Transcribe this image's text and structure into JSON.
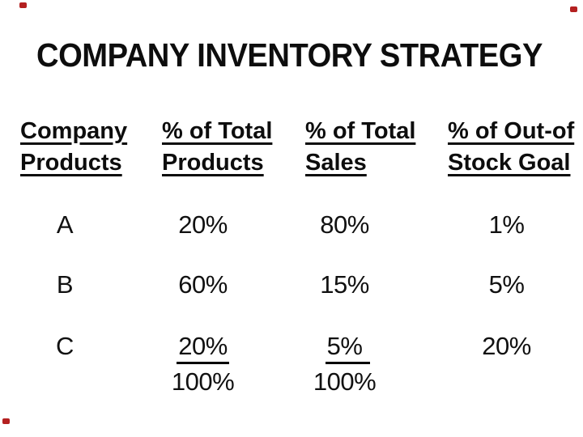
{
  "slide": {
    "title": "COMPANY INVENTORY STRATEGY",
    "background_color": "#ffffff",
    "text_color": "#000000",
    "corner_mark_color": "#b42020"
  },
  "table": {
    "columns": [
      {
        "key": "company_products",
        "header_lines": [
          "Company",
          "Products"
        ]
      },
      {
        "key": "pct_total_products",
        "header_lines": [
          "% of Total",
          "Products"
        ]
      },
      {
        "key": "pct_total_sales",
        "header_lines": [
          "% of Total",
          "Sales"
        ]
      },
      {
        "key": "pct_out_of_stock",
        "header_lines": [
          "% of Out-of",
          "Stock Goal"
        ]
      }
    ],
    "rows": [
      {
        "label": "A",
        "total_products": "20%",
        "total_sales": "80%",
        "out_of_stock_goal": "1%"
      },
      {
        "label": "B",
        "total_products": "60%",
        "total_sales": "15%",
        "out_of_stock_goal": "5%"
      },
      {
        "label": "C",
        "total_products": "20%",
        "total_sales": "5%",
        "out_of_stock_goal": "20%"
      }
    ],
    "totals": {
      "total_products": "100%",
      "total_sales": "100%"
    }
  }
}
